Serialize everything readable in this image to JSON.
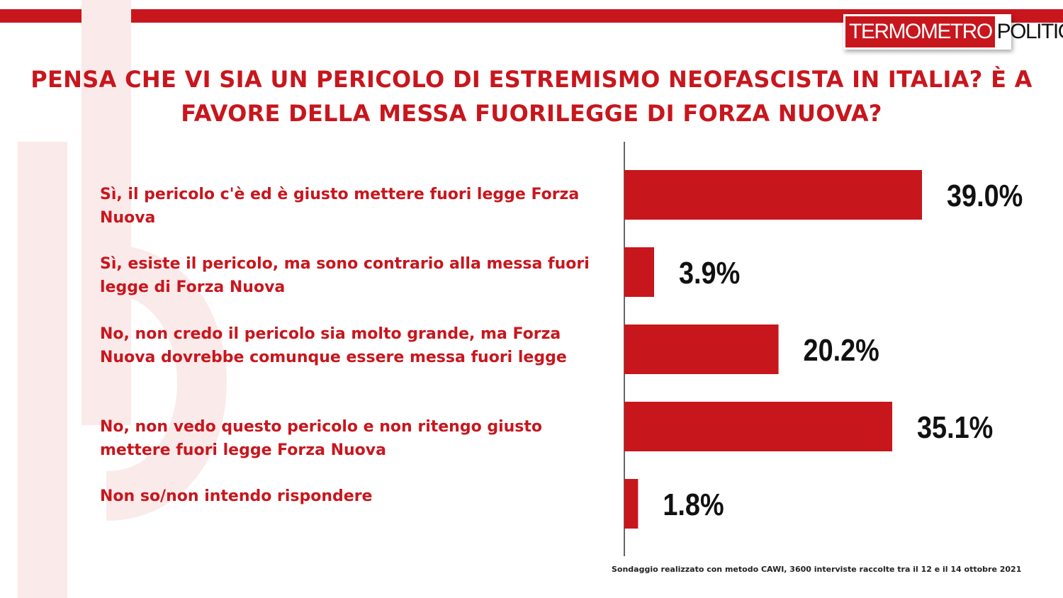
{
  "brand": {
    "logo_left": "TERMOMETRO",
    "logo_right": "POLITICO",
    "accent_color": "#c8161d"
  },
  "title": "PENSA CHE VI SIA UN PERICOLO DI ESTREMISMO NEOFASCISTA IN ITALIA? È A FAVORE DELLA MESSA FUORILEGGE DI FORZA NUOVA?",
  "footnote": "Sondaggio realizzato con metodo CAWI, 3600 interviste raccolte tra il 12 e il 14  ottobre 2021",
  "chart_data": {
    "type": "bar",
    "orientation": "horizontal",
    "categories": [
      "Sì, il pericolo c'è ed è giusto mettere fuori legge Forza Nuova",
      "Sì, esiste il pericolo, ma sono contrario alla messa fuori legge di Forza Nuova",
      "No, non credo il pericolo sia molto grande, ma Forza Nuova dovrebbe comunque essere messa fuori legge",
      "No, non vedo questo pericolo e non ritengo giusto mettere fuori legge Forza Nuova",
      "Non so/non intendo rispondere"
    ],
    "values": [
      39.0,
      3.9,
      20.2,
      35.1,
      1.8
    ],
    "value_labels": [
      "39.0%",
      "3.9%",
      "20.2%",
      "35.1%",
      "1.8%"
    ],
    "bar_color": "#c8161d",
    "xlim": [
      0,
      100
    ],
    "grid": false,
    "legend": "none"
  }
}
